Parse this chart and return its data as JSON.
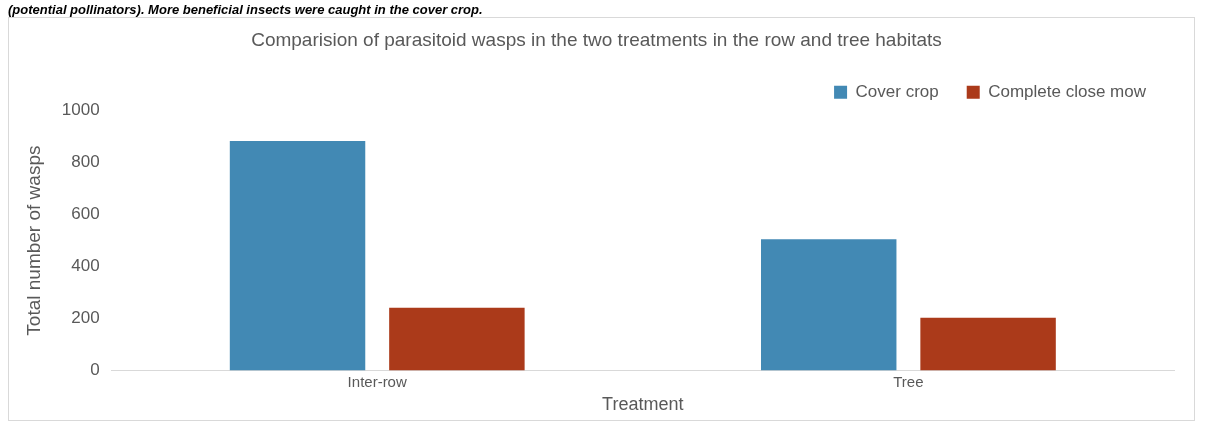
{
  "chart_data": {
    "type": "bar",
    "title": "Comparision of parasitoid wasps in the two treatments in the row and tree habitats",
    "xlabel": "Treatment",
    "ylabel": "Total number of wasps",
    "categories": [
      "Inter-row",
      "Tree"
    ],
    "series": [
      {
        "name": "Cover crop",
        "color": "#4289b4",
        "values": [
          884,
          505
        ]
      },
      {
        "name": "Complete close mow",
        "color": "#ab3a1a",
        "values": [
          241,
          203
        ]
      }
    ],
    "ylim": [
      0,
      1000
    ],
    "yticks": [
      0,
      200,
      400,
      600,
      800,
      1000
    ],
    "grid": false,
    "legend": "top right",
    "annotations": [
      "(potential pollinators). More beneficial insects were caught in the cover crop."
    ]
  }
}
